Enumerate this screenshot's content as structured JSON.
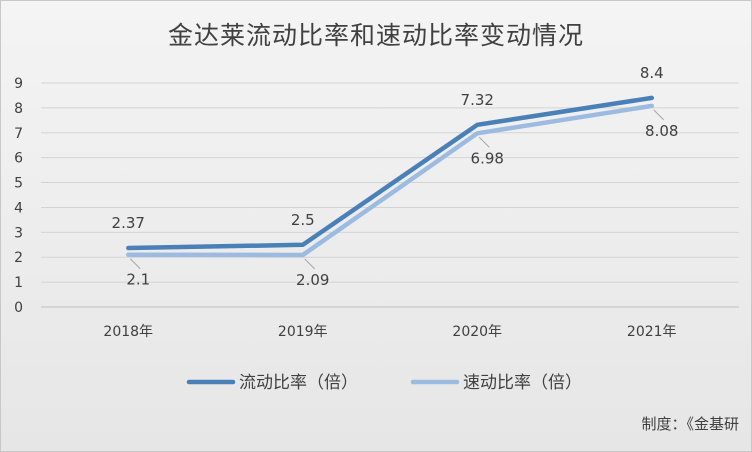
{
  "title": "金达莱流动比率和速动比率变动情况",
  "credit": "制度：《金基研",
  "chart_data": {
    "type": "line",
    "title": "金达莱流动比率和速动比率变动情况",
    "categories": [
      "2018年",
      "2019年",
      "2020年",
      "2021年"
    ],
    "series": [
      {
        "name": "流动比率（倍）",
        "values": [
          2.37,
          2.5,
          7.32,
          8.4
        ],
        "labels": [
          "2.37",
          "2.5",
          "7.32",
          "8.4"
        ],
        "color": "#4a80b8"
      },
      {
        "name": "速动比率（倍）",
        "values": [
          2.1,
          2.09,
          6.98,
          8.08
        ],
        "labels": [
          "2.1",
          "2.09",
          "6.98",
          "8.08"
        ],
        "color": "#9dbbe0"
      }
    ],
    "yticks": [
      "0",
      "1",
      "2",
      "3",
      "4",
      "5",
      "6",
      "7",
      "8",
      "9"
    ],
    "ylim": [
      0,
      9
    ],
    "grid": true,
    "legend": "bottom"
  }
}
